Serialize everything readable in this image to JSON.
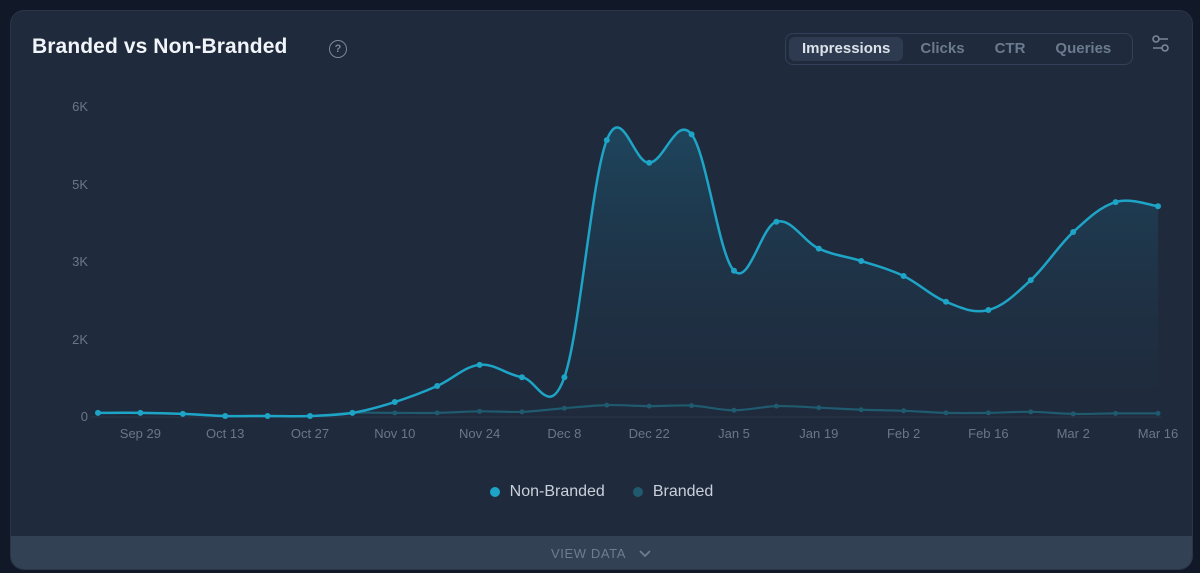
{
  "header": {
    "title": "Branded vs Non-Branded",
    "help_icon": "question-circle-icon"
  },
  "tabs": [
    {
      "label": "Impressions",
      "active": true
    },
    {
      "label": "Clicks",
      "active": false
    },
    {
      "label": "CTR",
      "active": false
    },
    {
      "label": "Queries",
      "active": false
    }
  ],
  "filter_icon": "sliders-icon",
  "legend": [
    {
      "label": "Non-Branded",
      "color": "#1ea4c6"
    },
    {
      "label": "Branded",
      "color": "#1f5a6e"
    }
  ],
  "footer": {
    "view_data_label": "VIEW DATA",
    "icon": "chevron-down-icon"
  },
  "colors": {
    "background": "#111827",
    "card": "#1f2a3c",
    "non_branded": "#1ea4c6",
    "branded": "#1f5a6e",
    "footer": "#334155"
  },
  "chart_data": {
    "type": "area",
    "title": "Branded vs Non-Branded",
    "metric": "Impressions",
    "xlabel": "",
    "ylabel": "",
    "ylim": [
      0,
      6000
    ],
    "y_ticks": [
      "0",
      "2K",
      "3K",
      "5K",
      "6K"
    ],
    "x_tick_labels": [
      "Sep 29",
      "Oct 13",
      "Oct 27",
      "Nov 10",
      "Nov 24",
      "Dec 8",
      "Dec 22",
      "Jan 5",
      "Jan 19",
      "Feb 2",
      "Feb 16",
      "Mar 2",
      "Mar 16"
    ],
    "x": [
      "Sep 22",
      "Sep 29",
      "Oct 6",
      "Oct 13",
      "Oct 20",
      "Oct 27",
      "Nov 3",
      "Nov 10",
      "Nov 17",
      "Nov 24",
      "Dec 1",
      "Dec 8",
      "Dec 15",
      "Dec 22",
      "Dec 29",
      "Jan 5",
      "Jan 12",
      "Jan 19",
      "Jan 26",
      "Feb 2",
      "Feb 9",
      "Feb 16",
      "Feb 23",
      "Mar 2",
      "Mar 9",
      "Mar 16"
    ],
    "grid": false,
    "legend_position": "bottom",
    "series": [
      {
        "name": "Non-Branded",
        "color": "#1ea4c6",
        "values": [
          80,
          80,
          60,
          20,
          20,
          20,
          80,
          290,
          600,
          1010,
          770,
          770,
          5360,
          4920,
          5470,
          2830,
          3780,
          3260,
          3020,
          2730,
          2230,
          2070,
          2650,
          3580,
          4160,
          4080
        ]
      },
      {
        "name": "Branded",
        "color": "#1f5a6e",
        "values": [
          80,
          80,
          60,
          20,
          20,
          20,
          80,
          80,
          80,
          110,
          100,
          170,
          230,
          210,
          220,
          130,
          210,
          180,
          140,
          120,
          80,
          80,
          100,
          60,
          70,
          70
        ]
      }
    ]
  }
}
